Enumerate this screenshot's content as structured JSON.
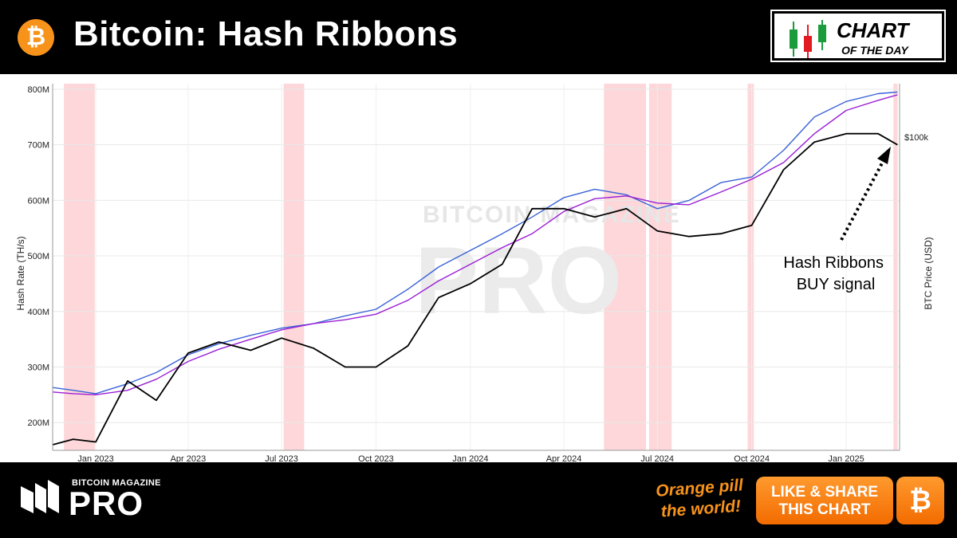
{
  "header": {
    "title": "Bitcoin: Hash Ribbons",
    "btc_symbol": "₿",
    "badge_line1": "CHART",
    "badge_line2": "OF THE DAY"
  },
  "chart_data": {
    "type": "line",
    "ylabel": "Hash Rate (TH/s)",
    "y2label": "BTC Price (USD)",
    "ylim": [
      150000000,
      810000000
    ],
    "y_ticks": [
      "200M",
      "300M",
      "400M",
      "500M",
      "600M",
      "700M",
      "800M"
    ],
    "y2_tick": "$100k",
    "x_ticks": [
      "Jan 2023",
      "Apr 2023",
      "Jul 2023",
      "Oct 2023",
      "Jan 2024",
      "Apr 2024",
      "Jul 2024",
      "Oct 2024",
      "Jan 2025"
    ],
    "x": [
      "2022-11-20",
      "2022-12-10",
      "2023-01-01",
      "2023-02-01",
      "2023-03-01",
      "2023-04-01",
      "2023-05-01",
      "2023-06-01",
      "2023-07-01",
      "2023-08-01",
      "2023-09-01",
      "2023-10-01",
      "2023-11-01",
      "2023-12-01",
      "2024-01-01",
      "2024-02-01",
      "2024-03-01",
      "2024-04-01",
      "2024-05-01",
      "2024-06-01",
      "2024-07-01",
      "2024-08-01",
      "2024-09-01",
      "2024-10-01",
      "2024-11-01",
      "2024-12-01",
      "2025-01-01",
      "2025-02-01",
      "2025-02-20"
    ],
    "series": [
      {
        "color": "#3a62d8",
        "values": [
          263,
          258,
          252,
          270,
          290,
          322,
          342,
          357,
          370,
          378,
          392,
          404,
          440,
          480,
          510,
          540,
          570,
          605,
          620,
          610,
          585,
          600,
          632,
          642,
          690,
          750,
          778,
          792,
          795
        ]
      },
      {
        "color": "#9a1fd6",
        "values": [
          255,
          252,
          250,
          258,
          278,
          310,
          332,
          350,
          367,
          378,
          385,
          395,
          420,
          455,
          485,
          515,
          540,
          580,
          603,
          608,
          595,
          592,
          615,
          638,
          668,
          720,
          762,
          780,
          790
        ]
      },
      {
        "color": "#000000",
        "values": [
          160,
          170,
          165,
          275,
          240,
          325,
          345,
          330,
          352,
          334,
          300,
          300,
          338,
          425,
          450,
          485,
          585,
          585,
          570,
          585,
          545,
          535,
          540,
          555,
          655,
          705,
          720,
          720,
          700
        ]
      }
    ],
    "buy_signal_annotation": "Hash Ribbons BUY signal",
    "capitulation_bands": [
      [
        "2022-12-01",
        "2022-12-31"
      ],
      [
        "2023-07-03",
        "2023-07-23"
      ],
      [
        "2024-05-10",
        "2024-06-20"
      ],
      [
        "2024-06-23",
        "2024-07-15"
      ],
      [
        "2024-09-27",
        "2024-10-03"
      ],
      [
        "2025-02-16",
        "2025-02-20"
      ]
    ],
    "band_color": "#fdd7d9",
    "watermark_line1": "BITCOIN MAGAZINE",
    "watermark_line2": "PRO"
  },
  "footer": {
    "brand_small": "BITCOIN MAGAZINE",
    "brand_big": "PRO",
    "slogan_line1": "Orange pill",
    "slogan_line2": "the world!",
    "share_line1": "LIKE & SHARE",
    "share_line2": "THIS CHART",
    "share_icon": "₿"
  },
  "colors": {
    "bitcoin_orange": "#f7931a",
    "background": "#000000"
  }
}
